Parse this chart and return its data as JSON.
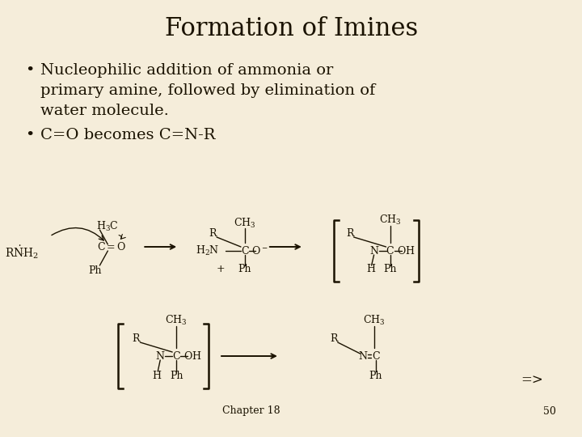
{
  "title": "Formation of Imines",
  "bullet1": "Nucleophilic addition of ammonia or\nprimary amine, followed by elimination of\nwater molecule.",
  "bullet2": "C=O becomes C=N-R",
  "background_color": "#f5edda",
  "text_color": "#1a1200",
  "title_fontsize": 22,
  "bullet_fontsize": 14,
  "chem_fontsize": 9,
  "chapter_text": "Chapter 18",
  "page_number": "50",
  "arrow_symbol": "=>"
}
